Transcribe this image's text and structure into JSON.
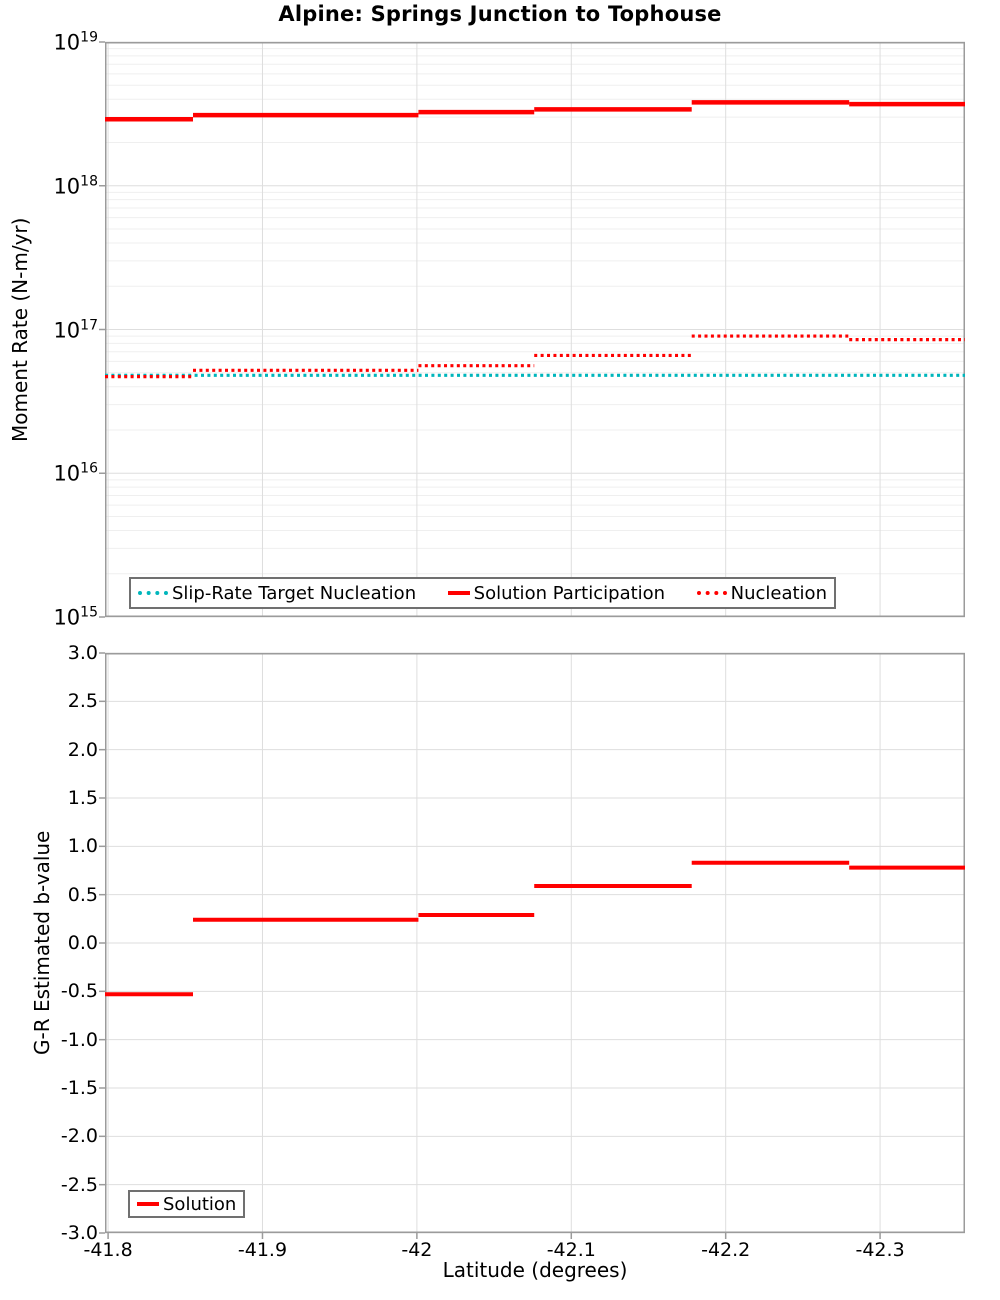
{
  "title": "Alpine: Springs Junction to Tophouse",
  "xlabel": "Latitude (degrees)",
  "colors": {
    "red": "#ff0000",
    "teal": "#00b6bc",
    "grid_major": "#dedede",
    "grid_minor": "#efefef",
    "axis_border": "#9b9b9b",
    "legend_border": "#707070",
    "text": "#000000"
  },
  "chart_data": [
    {
      "type": "line",
      "subtype": "step-segments",
      "panel": "moment-rate",
      "ylabel": "Moment Rate (N-m/yr)",
      "yscale": "log",
      "ylim": [
        1000000000000000.0,
        1e+19
      ],
      "y_tick_exponents": [
        "19",
        "18",
        "17",
        "16",
        "15"
      ],
      "y_tick_base": "10",
      "xlim": [
        -41.798,
        -42.355
      ],
      "x_tick_values": [
        -41.8,
        -41.9,
        -42.0,
        -42.1,
        -42.2,
        -42.3
      ],
      "grid": true,
      "legend": {
        "position": "bottom-left",
        "entries": [
          {
            "label": "Slip-Rate Target Nucleation",
            "color": "#00b6bc",
            "style": "dotted"
          },
          {
            "label": "Solution Participation",
            "color": "#ff0000",
            "style": "solid"
          },
          {
            "label": "Nucleation",
            "color": "#ff0000",
            "style": "dotted"
          }
        ]
      },
      "series": [
        {
          "name": "Slip-Rate Target Nucleation",
          "color": "#00b6bc",
          "style": "dotted",
          "width": 3.2,
          "segments": [
            [
              -41.798,
              -42.355,
              4.8e+16
            ]
          ]
        },
        {
          "name": "Solution Participation",
          "color": "#ff0000",
          "style": "solid",
          "width": 4.5,
          "segments": [
            [
              -41.798,
              -41.855,
              2.9e+18
            ],
            [
              -41.855,
              -42.001,
              3.1e+18
            ],
            [
              -42.001,
              -42.076,
              3.25e+18
            ],
            [
              -42.076,
              -42.178,
              3.4e+18
            ],
            [
              -42.178,
              -42.28,
              3.8e+18
            ],
            [
              -42.28,
              -42.355,
              3.7e+18
            ]
          ]
        },
        {
          "name": "Nucleation",
          "color": "#ff0000",
          "style": "dotted",
          "width": 3.2,
          "segments": [
            [
              -41.798,
              -41.855,
              4.7e+16
            ],
            [
              -41.855,
              -42.001,
              5.2e+16
            ],
            [
              -42.001,
              -42.076,
              5.6e+16
            ],
            [
              -42.076,
              -42.178,
              6.6e+16
            ],
            [
              -42.178,
              -42.28,
              9e+16
            ],
            [
              -42.28,
              -42.355,
              8.5e+16
            ]
          ]
        }
      ]
    },
    {
      "type": "line",
      "subtype": "step-segments",
      "panel": "b-value",
      "ylabel": "G-R Estimated b-value",
      "xlabel": "Latitude (degrees)",
      "yscale": "linear",
      "ylim": [
        -3.0,
        3.0
      ],
      "y_tick_step": 0.5,
      "y_tick_labels": [
        "3.0",
        "2.5",
        "2.0",
        "1.5",
        "1.0",
        "0.5",
        "0.0",
        "-0.5",
        "-1.0",
        "-1.5",
        "-2.0",
        "-2.5",
        "-3.0"
      ],
      "y_tick_values": [
        3.0,
        2.5,
        2.0,
        1.5,
        1.0,
        0.5,
        0.0,
        -0.5,
        -1.0,
        -1.5,
        -2.0,
        -2.5,
        -3.0
      ],
      "xlim": [
        -41.798,
        -42.355
      ],
      "x_tick_values": [
        -41.8,
        -41.9,
        -42.0,
        -42.1,
        -42.2,
        -42.3
      ],
      "x_tick_labels": [
        "-41.8",
        "-41.9",
        "-42",
        "-42.1",
        "-42.2",
        "-42.3"
      ],
      "grid": true,
      "legend": {
        "position": "bottom-left",
        "entries": [
          {
            "label": "Solution",
            "color": "#ff0000",
            "style": "solid"
          }
        ]
      },
      "series": [
        {
          "name": "Solution",
          "color": "#ff0000",
          "style": "solid",
          "width": 4,
          "segments": [
            [
              -41.798,
              -41.855,
              -0.53
            ],
            [
              -41.855,
              -42.001,
              0.24
            ],
            [
              -42.001,
              -42.076,
              0.29
            ],
            [
              -42.076,
              -42.178,
              0.59
            ],
            [
              -42.178,
              -42.28,
              0.83
            ],
            [
              -42.28,
              -42.355,
              0.78
            ]
          ]
        }
      ]
    }
  ]
}
